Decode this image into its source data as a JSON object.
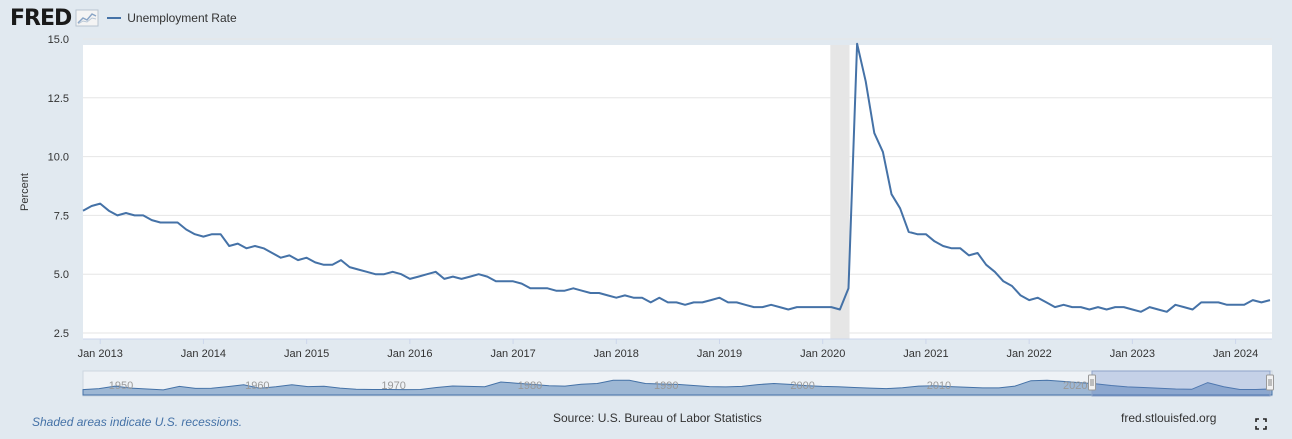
{
  "header": {
    "logo": "FRED",
    "legend_label": "Unemployment Rate"
  },
  "colors": {
    "series": "#4572a7",
    "recession": "#e6e6e6",
    "background": "#e1e9f0",
    "navigator_fill": "#5b86b8"
  },
  "chart_data": {
    "type": "line",
    "title": "",
    "xlabel": "",
    "ylabel": "Percent",
    "ylim": [
      2.5,
      15.0
    ],
    "yticks": [
      "2.5",
      "5.0",
      "7.5",
      "10.0",
      "12.5",
      "15.0"
    ],
    "xticks": [
      "Jan 2013",
      "Jan 2014",
      "Jan 2015",
      "Jan 2016",
      "Jan 2017",
      "Jan 2018",
      "Jan 2019",
      "Jan 2020",
      "Jan 2021",
      "Jan 2022",
      "Jan 2023",
      "Jan 2024"
    ],
    "x_start": "2012-11",
    "recession": {
      "start": "2020-02",
      "end": "2020-04"
    },
    "series": [
      {
        "name": "Unemployment Rate",
        "values": [
          7.7,
          7.9,
          8.0,
          7.7,
          7.5,
          7.6,
          7.5,
          7.5,
          7.3,
          7.2,
          7.2,
          7.2,
          6.9,
          6.7,
          6.6,
          6.7,
          6.7,
          6.2,
          6.3,
          6.1,
          6.2,
          6.1,
          5.9,
          5.7,
          5.8,
          5.6,
          5.7,
          5.5,
          5.4,
          5.4,
          5.6,
          5.3,
          5.2,
          5.1,
          5.0,
          5.0,
          5.1,
          5.0,
          4.8,
          4.9,
          5.0,
          5.1,
          4.8,
          4.9,
          4.8,
          4.9,
          5.0,
          4.9,
          4.7,
          4.7,
          4.7,
          4.6,
          4.4,
          4.4,
          4.4,
          4.3,
          4.3,
          4.4,
          4.3,
          4.2,
          4.2,
          4.1,
          4.0,
          4.1,
          4.0,
          4.0,
          3.8,
          4.0,
          3.8,
          3.8,
          3.7,
          3.8,
          3.8,
          3.9,
          4.0,
          3.8,
          3.8,
          3.7,
          3.6,
          3.6,
          3.7,
          3.6,
          3.5,
          3.6,
          3.6,
          3.6,
          3.6,
          3.6,
          3.5,
          4.4,
          14.8,
          13.2,
          11.0,
          10.2,
          8.4,
          7.8,
          6.8,
          6.7,
          6.7,
          6.4,
          6.2,
          6.1,
          6.1,
          5.8,
          5.9,
          5.4,
          5.1,
          4.7,
          4.5,
          4.1,
          3.9,
          4.0,
          3.8,
          3.6,
          3.7,
          3.6,
          3.6,
          3.5,
          3.6,
          3.5,
          3.6,
          3.6,
          3.5,
          3.4,
          3.6,
          3.5,
          3.4,
          3.7,
          3.6,
          3.5,
          3.8,
          3.8,
          3.8,
          3.7,
          3.7,
          3.7,
          3.9,
          3.8,
          3.9
        ]
      }
    ],
    "navigator": {
      "ticks": [
        "1950",
        "1960",
        "1970",
        "1980",
        "1990",
        "2000",
        "2010",
        "2020"
      ],
      "shape": [
        3.5,
        4.2,
        5.8,
        4.5,
        3.9,
        3.3,
        5.6,
        4.3,
        4.4,
        5.5,
        6.7,
        4.4,
        5.4,
        6.7,
        5.5,
        5.7,
        4.5,
        3.8,
        3.6,
        3.6,
        3.5,
        3.6,
        4.9,
        5.9,
        5.6,
        5.4,
        8.5,
        7.7,
        6.9,
        6.0,
        5.8,
        7.0,
        7.5,
        9.6,
        9.6,
        7.5,
        7.2,
        6.9,
        6.2,
        5.5,
        5.3,
        5.6,
        6.8,
        7.5,
        6.9,
        6.1,
        5.6,
        5.4,
        4.9,
        4.5,
        4.2,
        4.7,
        5.8,
        6.0,
        5.5,
        5.1,
        4.6,
        4.6,
        5.8,
        9.3,
        9.6,
        8.9,
        8.1,
        7.4,
        6.2,
        5.3,
        4.9,
        4.4,
        3.9,
        3.7,
        8.1,
        5.4,
        3.6,
        3.6,
        4.0
      ]
    }
  },
  "footer": {
    "recession_note": "Shaded areas indicate U.S. recessions.",
    "source": "Source: U.S. Bureau of Labor Statistics",
    "site": "fred.stlouisfed.org"
  }
}
